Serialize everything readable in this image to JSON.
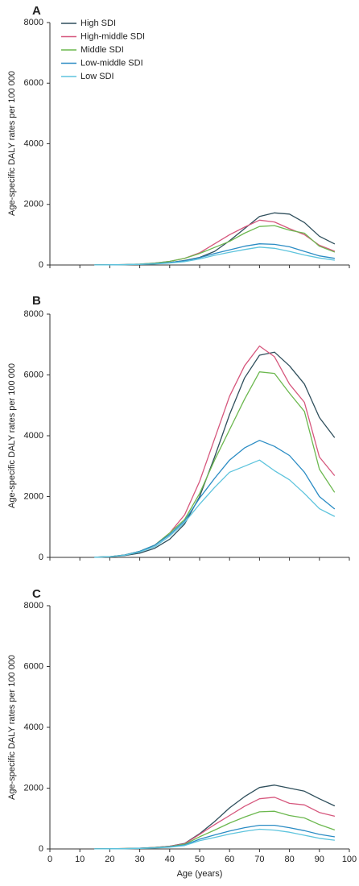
{
  "figure": {
    "colors": {
      "High SDI": "#2f4f5c",
      "High-middle SDI": "#d6577d",
      "Middle SDI": "#6cb84f",
      "Low-middle SDI": "#2b8cc4",
      "Low SDI": "#5ec4dd"
    }
  },
  "chart_data": [
    {
      "type": "line",
      "panel": "A",
      "xlabel": "",
      "ylabel": "Age-specific DALY rates per 100 000",
      "xlim": [
        0,
        100
      ],
      "ylim": [
        0,
        8000
      ],
      "xticks": [
        0,
        10,
        20,
        30,
        40,
        50,
        60,
        70,
        80,
        90,
        100
      ],
      "yticks": [
        0,
        2000,
        4000,
        6000,
        8000
      ],
      "ytick_labels": [
        "0",
        "2000",
        "4000",
        "6000",
        "8000"
      ],
      "show_xtick_labels": false,
      "legend": {
        "position": "top-left",
        "entries": [
          "High SDI",
          "High-middle SDI",
          "Middle SDI",
          "Low-middle SDI",
          "Low SDI"
        ]
      },
      "x": [
        15,
        20,
        25,
        30,
        35,
        40,
        45,
        50,
        55,
        60,
        65,
        70,
        75,
        80,
        85,
        90,
        95
      ],
      "series": [
        {
          "name": "High SDI",
          "values": [
            2,
            5,
            10,
            20,
            40,
            80,
            150,
            250,
            450,
            800,
            1200,
            1600,
            1720,
            1680,
            1400,
            950,
            700
          ]
        },
        {
          "name": "High-middle SDI",
          "values": [
            2,
            6,
            14,
            30,
            60,
            120,
            220,
            400,
            700,
            1000,
            1250,
            1480,
            1420,
            1200,
            1000,
            650,
            460
          ]
        },
        {
          "name": "Middle SDI",
          "values": [
            2,
            6,
            14,
            30,
            60,
            120,
            220,
            380,
            580,
            780,
            1050,
            1270,
            1300,
            1150,
            1050,
            620,
            430
          ]
        },
        {
          "name": "Low-middle SDI",
          "values": [
            2,
            5,
            12,
            25,
            45,
            80,
            140,
            240,
            380,
            500,
            620,
            700,
            680,
            600,
            450,
            300,
            220
          ]
        },
        {
          "name": "Low SDI",
          "values": [
            2,
            5,
            10,
            20,
            35,
            65,
            110,
            200,
            320,
            420,
            510,
            590,
            550,
            450,
            330,
            230,
            160
          ]
        }
      ]
    },
    {
      "type": "line",
      "panel": "B",
      "xlabel": "",
      "ylabel": "Age-specific DALY rates per 100 000",
      "xlim": [
        0,
        100
      ],
      "ylim": [
        0,
        8000
      ],
      "xticks": [
        0,
        10,
        20,
        30,
        40,
        50,
        60,
        70,
        80,
        90,
        100
      ],
      "yticks": [
        0,
        2000,
        4000,
        6000,
        8000
      ],
      "ytick_labels": [
        "0",
        "2000",
        "4000",
        "6000",
        "8000"
      ],
      "show_xtick_labels": false,
      "x": [
        15,
        20,
        25,
        30,
        35,
        40,
        45,
        50,
        55,
        60,
        65,
        70,
        75,
        80,
        85,
        90,
        95
      ],
      "series": [
        {
          "name": "High SDI",
          "values": [
            5,
            20,
            60,
            140,
            300,
            600,
            1100,
            2000,
            3300,
            4700,
            5900,
            6650,
            6750,
            6300,
            5700,
            4600,
            3950
          ]
        },
        {
          "name": "High-middle SDI",
          "values": [
            5,
            25,
            80,
            200,
            400,
            800,
            1400,
            2500,
            3900,
            5300,
            6300,
            6950,
            6600,
            5700,
            5100,
            3300,
            2700
          ]
        },
        {
          "name": "Middle SDI",
          "values": [
            5,
            25,
            80,
            200,
            400,
            800,
            1250,
            2100,
            3200,
            4200,
            5200,
            6100,
            6050,
            5400,
            4800,
            2900,
            2150
          ]
        },
        {
          "name": "Low-middle SDI",
          "values": [
            5,
            25,
            80,
            200,
            400,
            750,
            1200,
            1950,
            2600,
            3200,
            3600,
            3850,
            3650,
            3350,
            2800,
            2000,
            1600
          ]
        },
        {
          "name": "Low SDI",
          "values": [
            5,
            20,
            70,
            180,
            350,
            700,
            1150,
            1750,
            2300,
            2800,
            3000,
            3200,
            2850,
            2550,
            2100,
            1600,
            1350
          ]
        }
      ]
    },
    {
      "type": "line",
      "panel": "C",
      "xlabel": "Age (years)",
      "ylabel": "Age-specific DALY rates per 100 000",
      "xlim": [
        0,
        100
      ],
      "ylim": [
        0,
        8000
      ],
      "xticks": [
        0,
        10,
        20,
        30,
        40,
        50,
        60,
        70,
        80,
        90,
        100
      ],
      "xtick_labels": [
        "0",
        "10",
        "20",
        "30",
        "40",
        "50",
        "60",
        "70",
        "80",
        "90",
        "100"
      ],
      "yticks": [
        0,
        2000,
        4000,
        6000,
        8000
      ],
      "ytick_labels": [
        "0",
        "2000",
        "4000",
        "6000",
        "8000"
      ],
      "show_xtick_labels": true,
      "x": [
        15,
        20,
        25,
        30,
        35,
        40,
        45,
        50,
        55,
        60,
        65,
        70,
        75,
        80,
        85,
        90,
        95
      ],
      "series": [
        {
          "name": "High SDI",
          "values": [
            2,
            5,
            12,
            25,
            50,
            90,
            180,
            500,
            900,
            1350,
            1720,
            2020,
            2100,
            2000,
            1900,
            1650,
            1420
          ]
        },
        {
          "name": "High-middle SDI",
          "values": [
            2,
            5,
            12,
            25,
            50,
            90,
            170,
            480,
            800,
            1100,
            1400,
            1650,
            1700,
            1500,
            1450,
            1200,
            1080
          ]
        },
        {
          "name": "Middle SDI",
          "values": [
            2,
            5,
            12,
            25,
            45,
            80,
            150,
            400,
            620,
            850,
            1050,
            1220,
            1240,
            1100,
            1020,
            800,
            630
          ]
        },
        {
          "name": "Low-middle SDI",
          "values": [
            2,
            5,
            10,
            20,
            40,
            70,
            130,
            320,
            460,
            590,
            700,
            780,
            780,
            700,
            600,
            480,
            400
          ]
        },
        {
          "name": "Low SDI",
          "values": [
            2,
            4,
            8,
            16,
            32,
            55,
            110,
            270,
            380,
            490,
            580,
            650,
            620,
            550,
            450,
            350,
            290
          ]
        }
      ]
    }
  ]
}
